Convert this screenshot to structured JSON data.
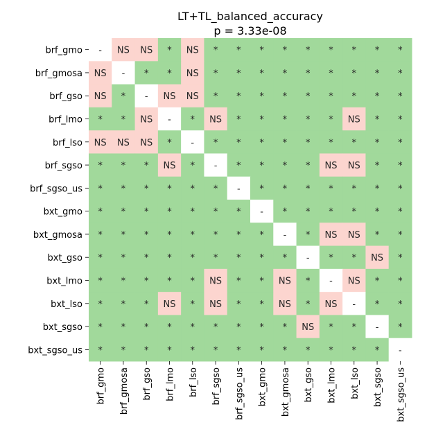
{
  "chart_data": {
    "type": "heatmap",
    "title": "LT+TL_balanced_accuracy",
    "subtitle": "p = 3.33e-08",
    "labels": [
      "brf_gmo",
      "brf_gmosa",
      "brf_gso",
      "brf_lmo",
      "brf_lso",
      "brf_sgso",
      "brf_sgso_us",
      "bxt_gmo",
      "bxt_gmosa",
      "bxt_gso",
      "bxt_lmo",
      "bxt_lso",
      "bxt_sgso",
      "bxt_sgso_us"
    ],
    "matrix": [
      [
        "-",
        "NS",
        "NS",
        "*",
        "NS",
        "*",
        "*",
        "*",
        "*",
        "*",
        "*",
        "*",
        "*",
        "*"
      ],
      [
        "NS",
        "-",
        "*",
        "*",
        "NS",
        "*",
        "*",
        "*",
        "*",
        "*",
        "*",
        "*",
        "*",
        "*"
      ],
      [
        "NS",
        "*",
        "-",
        "NS",
        "NS",
        "*",
        "*",
        "*",
        "*",
        "*",
        "*",
        "*",
        "*",
        "*"
      ],
      [
        "*",
        "*",
        "NS",
        "-",
        "*",
        "NS",
        "*",
        "*",
        "*",
        "*",
        "*",
        "NS",
        "*",
        "*"
      ],
      [
        "NS",
        "NS",
        "NS",
        "*",
        "-",
        "*",
        "*",
        "*",
        "*",
        "*",
        "*",
        "*",
        "*",
        "*"
      ],
      [
        "*",
        "*",
        "*",
        "NS",
        "*",
        "-",
        "*",
        "*",
        "*",
        "*",
        "NS",
        "NS",
        "*",
        "*"
      ],
      [
        "*",
        "*",
        "*",
        "*",
        "*",
        "*",
        "-",
        "*",
        "*",
        "*",
        "*",
        "*",
        "*",
        "*"
      ],
      [
        "*",
        "*",
        "*",
        "*",
        "*",
        "*",
        "*",
        "-",
        "*",
        "*",
        "*",
        "*",
        "*",
        "*"
      ],
      [
        "*",
        "*",
        "*",
        "*",
        "*",
        "*",
        "*",
        "*",
        "-",
        "*",
        "NS",
        "NS",
        "*",
        "*"
      ],
      [
        "*",
        "*",
        "*",
        "*",
        "*",
        "*",
        "*",
        "*",
        "*",
        "-",
        "*",
        "*",
        "NS",
        "*"
      ],
      [
        "*",
        "*",
        "*",
        "*",
        "*",
        "NS",
        "*",
        "*",
        "NS",
        "*",
        "-",
        "NS",
        "*",
        "*"
      ],
      [
        "*",
        "*",
        "*",
        "NS",
        "*",
        "NS",
        "*",
        "*",
        "NS",
        "*",
        "NS",
        "-",
        "*",
        "*"
      ],
      [
        "*",
        "*",
        "*",
        "*",
        "*",
        "*",
        "*",
        "*",
        "*",
        "NS",
        "*",
        "*",
        "-",
        "*"
      ],
      [
        "*",
        "*",
        "*",
        "*",
        "*",
        "*",
        "*",
        "*",
        "*",
        "*",
        "*",
        "*",
        "*",
        "-"
      ]
    ],
    "colors": {
      "significant": "#a1d99b",
      "not_significant": "#fcd5cf",
      "diagonal": "#ffffff"
    }
  }
}
